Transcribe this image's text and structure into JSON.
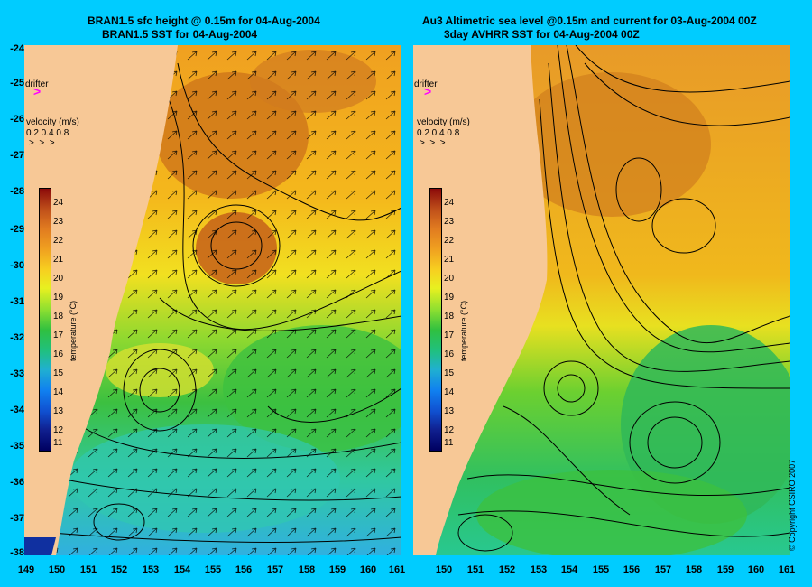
{
  "left_panel": {
    "title_line1": "BRAN1.5 sfc height @ 0.15m for 04-Aug-2004",
    "title_line2": "BRAN1.5 SST for 04-Aug-2004",
    "drifter_label": "drifter",
    "velocity_label": "velocity (m/s)",
    "velocity_values": "0.2 0.4 0.8",
    "colorbar_title": "temperature (°C)"
  },
  "right_panel": {
    "title_line1": "Au3 Altimetric sea level  @0.15m and current for 03-Aug-2004 00Z",
    "title_line2": "3day AVHRR SST for 04-Aug-2004 00Z",
    "drifter_label": "drifter",
    "velocity_label": "velocity (m/s)",
    "velocity_values": "0.2 0.4 0.8",
    "colorbar_title": "temperature (°C)"
  },
  "y_axis": {
    "labels": [
      "-24",
      "-25",
      "-26",
      "-27",
      "-28",
      "-29",
      "-30",
      "-31",
      "-32",
      "-33",
      "-34",
      "-35",
      "-36",
      "-37",
      "-38"
    ]
  },
  "x_axis_left": {
    "labels": [
      "149",
      "150",
      "151",
      "152",
      "153",
      "154",
      "155",
      "156",
      "157",
      "158",
      "159",
      "160",
      "161"
    ]
  },
  "x_axis_right": {
    "labels": [
      "150",
      "151",
      "152",
      "153",
      "154",
      "155",
      "156",
      "157",
      "158",
      "159",
      "160",
      "161"
    ]
  },
  "colorbar_ticks": [
    "24",
    "23",
    "22",
    "21",
    "20",
    "19",
    "18",
    "17",
    "16",
    "15",
    "14",
    "13",
    "12",
    "11"
  ],
  "copyright": "© Copyright CSIRO 2007",
  "colors": {
    "background": "#00ccff",
    "land": "#f7c896",
    "drifter": "#ff00ff"
  }
}
